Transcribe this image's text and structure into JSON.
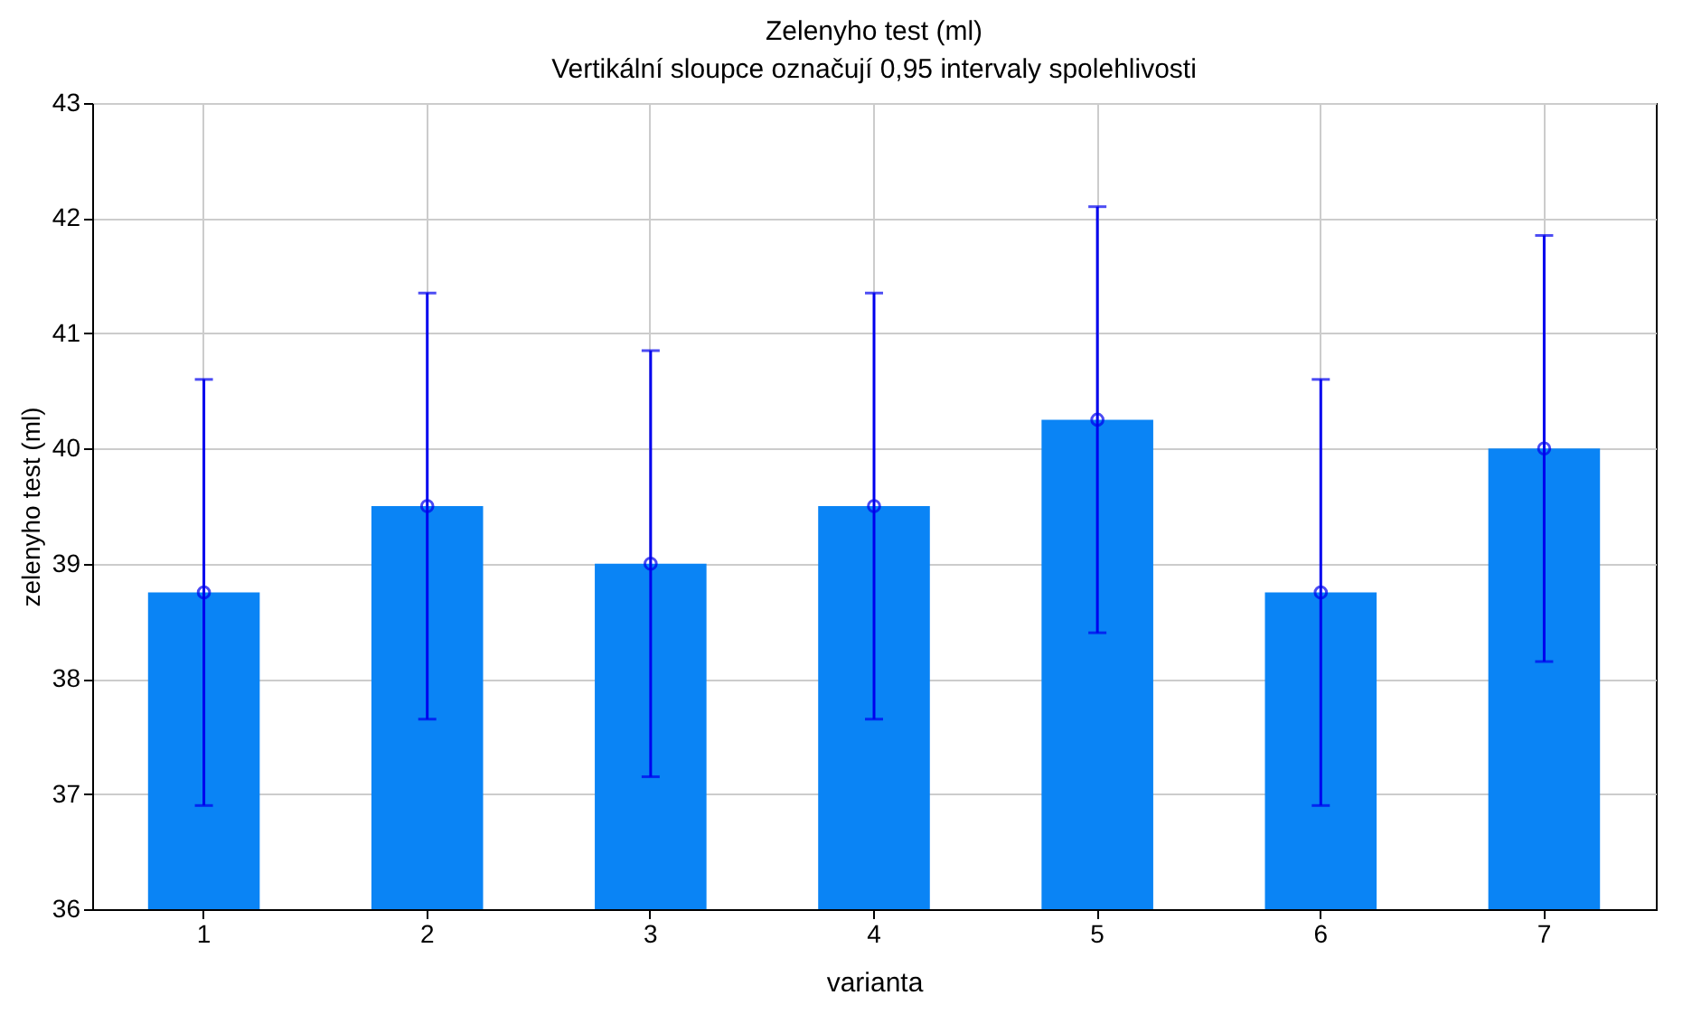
{
  "chart_data": {
    "type": "bar",
    "title": "Zelenyho test (ml)",
    "subtitle": "Vertikální sloupce označují 0,95 intervaly spolehlivosti",
    "xlabel": "varianta",
    "ylabel": "zelenyho test (ml)",
    "categories": [
      "1",
      "2",
      "3",
      "4",
      "5",
      "6",
      "7"
    ],
    "series": [
      {
        "color": "#0a84f5",
        "values": [
          38.75,
          39.5,
          39.0,
          39.5,
          40.25,
          38.75,
          40.0
        ],
        "errors": [
          1.85,
          1.85,
          1.85,
          1.85,
          1.85,
          1.85,
          1.85
        ]
      },
      {
        "type": "scatter",
        "color": "#0000ee",
        "marker": "circle",
        "x": [
          "1",
          "2",
          "3",
          "4",
          "5",
          "6",
          "7"
        ],
        "values": [
          38.75,
          39.5,
          39.0,
          39.5,
          40.25,
          38.75,
          40.0
        ]
      }
    ],
    "ylim": [
      36,
      43
    ],
    "yticks": [
      36,
      37,
      38,
      39,
      40,
      41,
      42,
      43
    ],
    "grid": true
  }
}
